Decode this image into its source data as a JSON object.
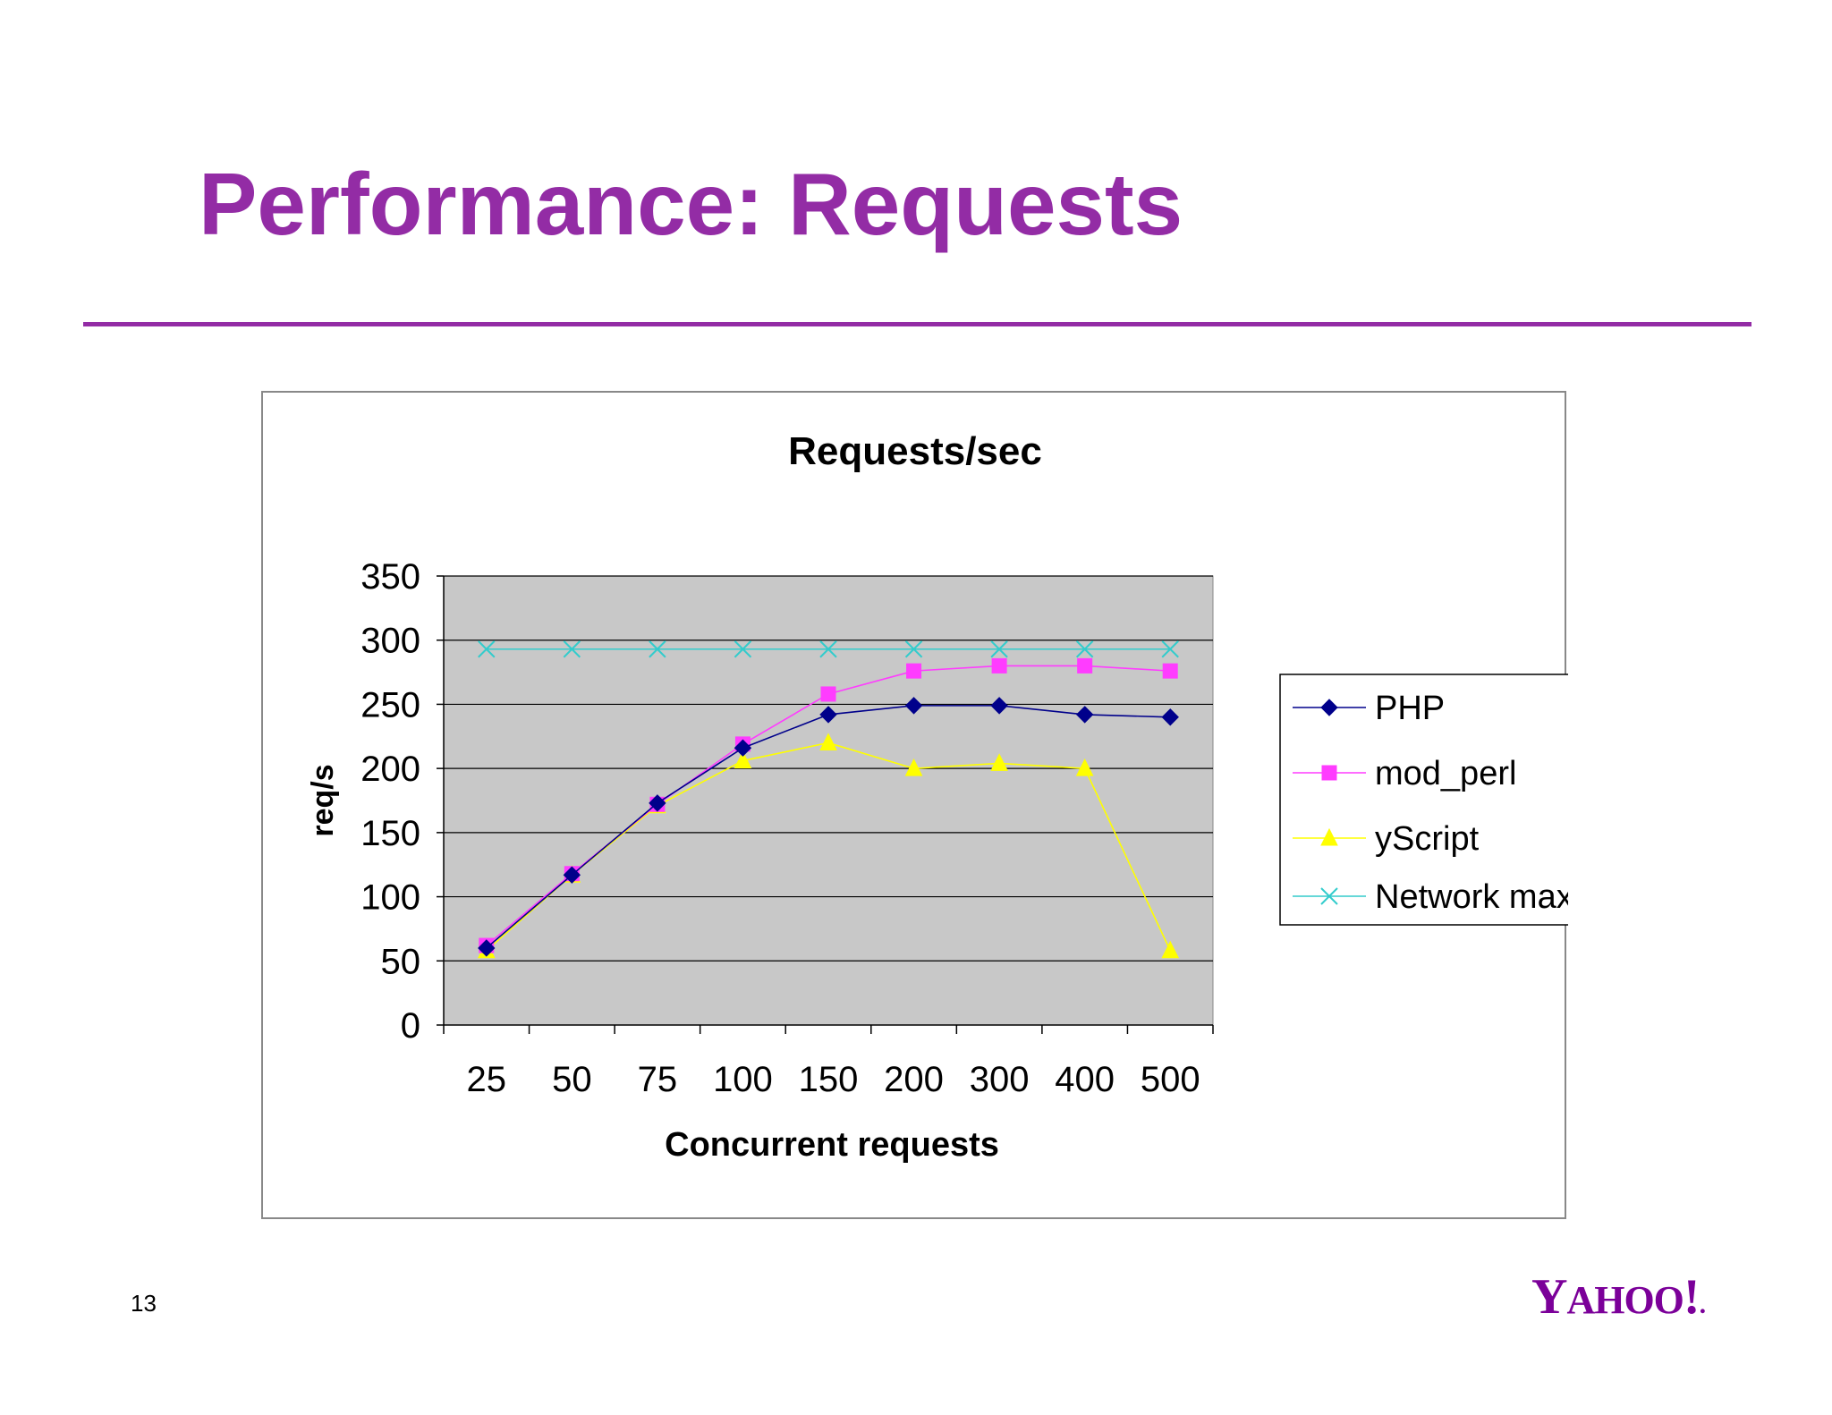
{
  "slide": {
    "title": "Performance: Requests",
    "page_number": "13",
    "logo": "YAHOO!"
  },
  "colors": {
    "accent": "#932ca5",
    "plot_bg": "#c8c8c8",
    "php": "#00008b",
    "mod_perl": "#ff3cff",
    "yscript": "#ffff00",
    "network_max": "#33cccc"
  },
  "chart_data": {
    "type": "line",
    "title": "Requests/sec",
    "xlabel": "Concurrent requests",
    "ylabel": "req/s",
    "categories": [
      "25",
      "50",
      "75",
      "100",
      "150",
      "200",
      "300",
      "400",
      "500"
    ],
    "ylim": [
      0,
      350
    ],
    "yticks": [
      0,
      50,
      100,
      150,
      200,
      250,
      300,
      350
    ],
    "grid": true,
    "legend_position": "right",
    "series": [
      {
        "name": "PHP",
        "marker": "diamond",
        "color": "#00008b",
        "values": [
          60,
          117,
          173,
          216,
          242,
          249,
          249,
          242,
          240
        ]
      },
      {
        "name": "mod_perl",
        "marker": "square",
        "color": "#ff3cff",
        "values": [
          62,
          118,
          172,
          219,
          258,
          276,
          280,
          280,
          276
        ]
      },
      {
        "name": "yScript",
        "marker": "triangle",
        "color": "#ffff00",
        "values": [
          58,
          117,
          171,
          206,
          220,
          200,
          204,
          200,
          58
        ]
      },
      {
        "name": "Network max",
        "marker": "x",
        "color": "#33cccc",
        "values": [
          293,
          293,
          293,
          293,
          293,
          293,
          293,
          293,
          293
        ]
      }
    ]
  }
}
